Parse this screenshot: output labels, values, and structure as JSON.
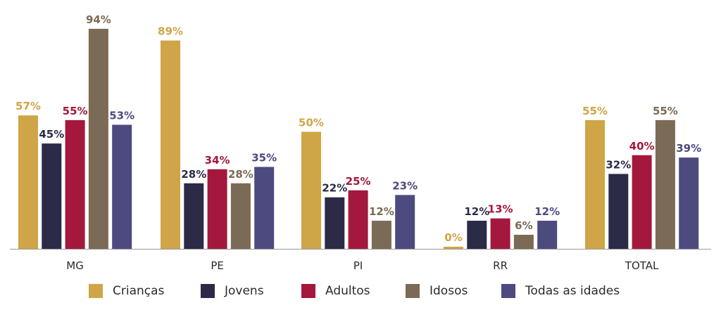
{
  "chart_data": {
    "type": "bar",
    "categories": [
      "MG",
      "PE",
      "PI",
      "RR",
      "TOTAL"
    ],
    "series": [
      {
        "name": "Crianças",
        "color": "#CFA547",
        "values": [
          57,
          89,
          50,
          0,
          55
        ]
      },
      {
        "name": "Jovens",
        "color": "#2B2B47",
        "values": [
          45,
          28,
          22,
          12,
          32
        ]
      },
      {
        "name": "Adultos",
        "color": "#A3183C",
        "values": [
          55,
          34,
          25,
          13,
          40
        ]
      },
      {
        "name": "Idosos",
        "color": "#7B6A55",
        "values": [
          94,
          28,
          12,
          6,
          55
        ]
      },
      {
        "name": "Todas as idades",
        "color": "#4D4A80",
        "values": [
          53,
          35,
          23,
          12,
          39
        ]
      }
    ],
    "value_suffix": "%",
    "ylim": [
      0,
      100
    ],
    "grid": false,
    "legend_position": "bottom"
  }
}
